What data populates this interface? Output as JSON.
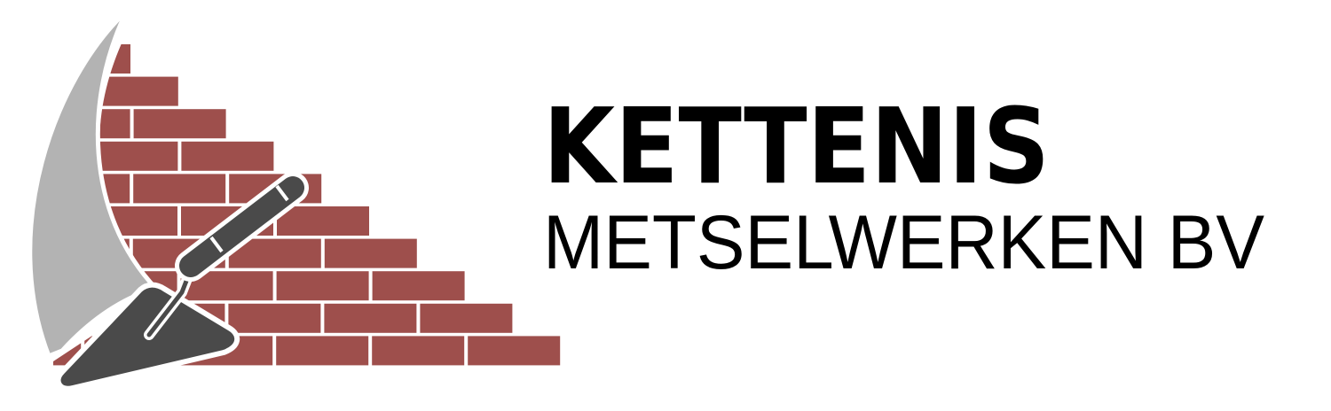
{
  "logo": {
    "name": "KETTENIS",
    "tagline": "METSELWERKEN BV"
  }
}
